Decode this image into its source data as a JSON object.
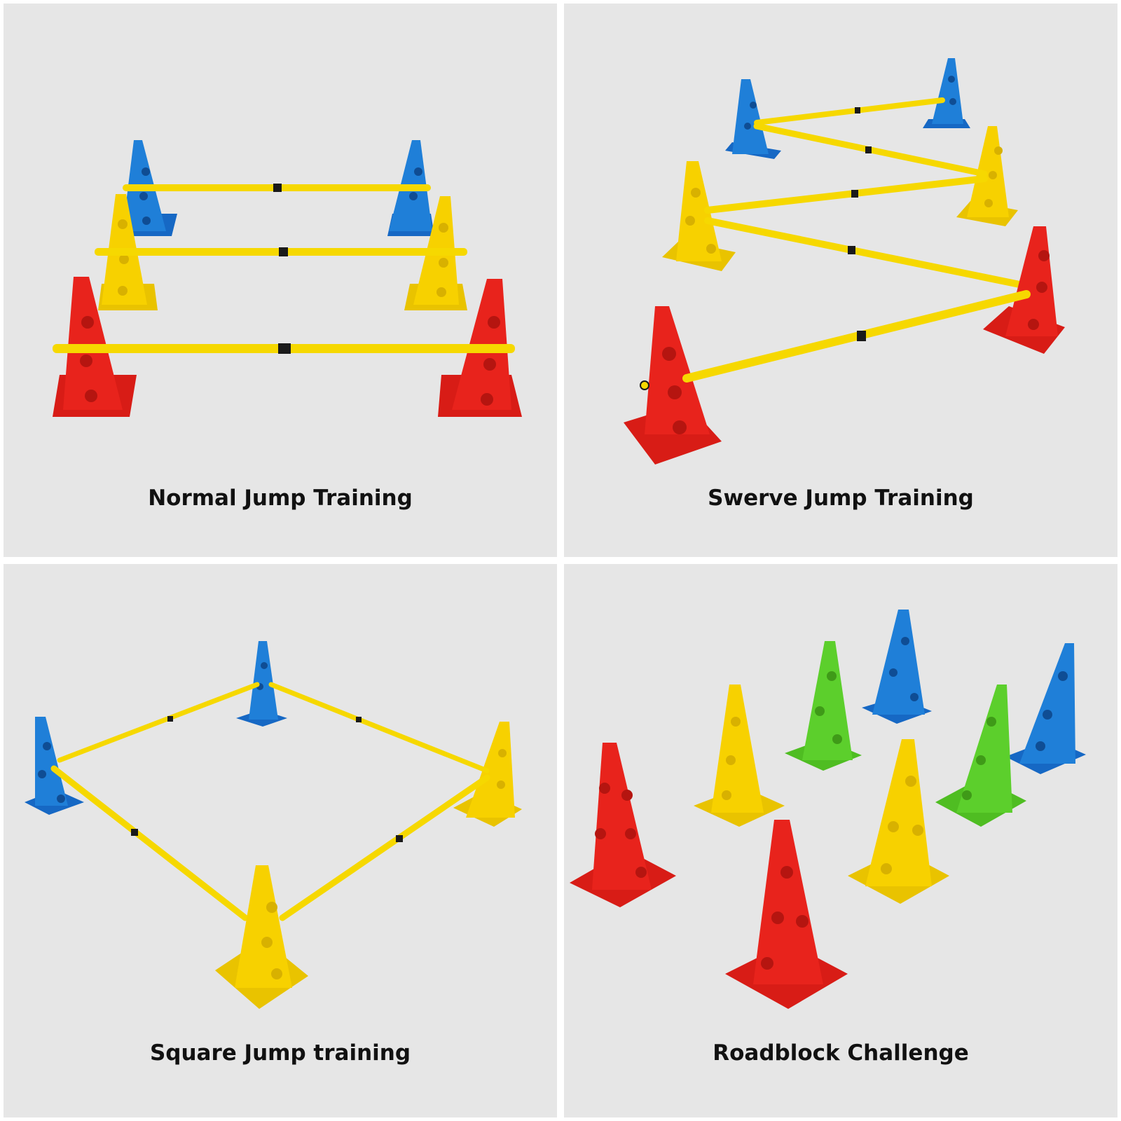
{
  "panels": [
    {
      "caption": "Normal Jump Training"
    },
    {
      "caption": "Swerve Jump Training"
    },
    {
      "caption": "Square Jump training"
    },
    {
      "caption": "Roadblock Challenge"
    }
  ],
  "colors": {
    "background": "#e6e6e6",
    "red": "#e8231c",
    "yellow": "#f7d100",
    "blue": "#1f7fd8",
    "green": "#5ccf2c",
    "pole": "#f6d800",
    "band": "#1a1a1a"
  }
}
